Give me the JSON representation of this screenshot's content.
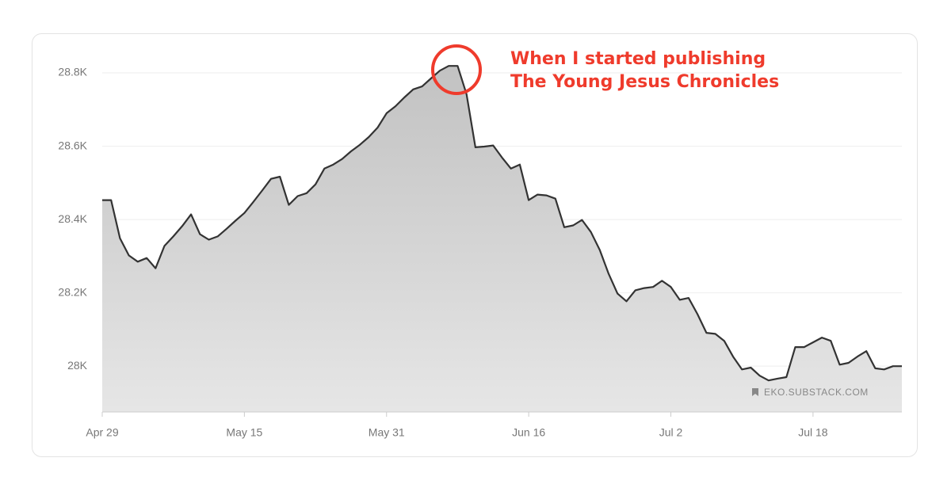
{
  "chart_data": {
    "type": "area",
    "annotation": [
      "When I started publishing",
      "The Young Jesus Chronicles"
    ],
    "watermark": "EKO.SUBSTACK.COM",
    "categories": [
      "Apr 29",
      null,
      null,
      null,
      null,
      null,
      null,
      null,
      null,
      null,
      null,
      null,
      null,
      null,
      null,
      null,
      "May 15",
      null,
      null,
      null,
      null,
      null,
      null,
      null,
      null,
      null,
      null,
      null,
      null,
      null,
      null,
      null,
      "May 31",
      null,
      null,
      null,
      null,
      null,
      null,
      null,
      null,
      null,
      null,
      null,
      null,
      null,
      null,
      null,
      "Jun 16",
      null,
      null,
      null,
      null,
      null,
      null,
      null,
      null,
      null,
      null,
      null,
      null,
      null,
      null,
      null,
      "Jul 2",
      null,
      null,
      null,
      null,
      null,
      null,
      null,
      null,
      null,
      null,
      null,
      null,
      null,
      null,
      null,
      "Jul 18",
      null,
      null,
      null,
      null,
      null,
      null,
      null,
      null,
      null,
      null
    ],
    "values": [
      28453,
      28453,
      28349,
      28302,
      28285,
      28295,
      28267,
      28328,
      28354,
      28382,
      28414,
      28360,
      28345,
      28354,
      28375,
      28397,
      28418,
      28448,
      28479,
      28511,
      28517,
      28440,
      28464,
      28472,
      28496,
      28539,
      28550,
      28565,
      28586,
      28604,
      28625,
      28651,
      28690,
      28709,
      28733,
      28755,
      28763,
      28785,
      28806,
      28819,
      28819,
      28742,
      28597,
      28599,
      28602,
      28569,
      28539,
      28550,
      28453,
      28468,
      28466,
      28457,
      28379,
      28384,
      28399,
      28366,
      28317,
      28252,
      28198,
      28177,
      28207,
      28213,
      28216,
      28233,
      28216,
      28181,
      28186,
      28142,
      28091,
      28088,
      28069,
      28026,
      27991,
      27996,
      27974,
      27961,
      27966,
      27970,
      28052,
      28052,
      28065,
      28078,
      28069,
      28004,
      28009,
      28026,
      28041,
      27994,
      27991,
      28000,
      28000
    ],
    "color": "#333333",
    "ylim": [
      27875,
      28880
    ],
    "yticks": [
      {
        "value": 28000,
        "label": "28K"
      },
      {
        "value": 28200,
        "label": "28.2K"
      },
      {
        "value": 28400,
        "label": "28.4K"
      },
      {
        "value": 28600,
        "label": "28.6K"
      },
      {
        "value": 28800,
        "label": "28.8K"
      }
    ],
    "grid": true
  }
}
